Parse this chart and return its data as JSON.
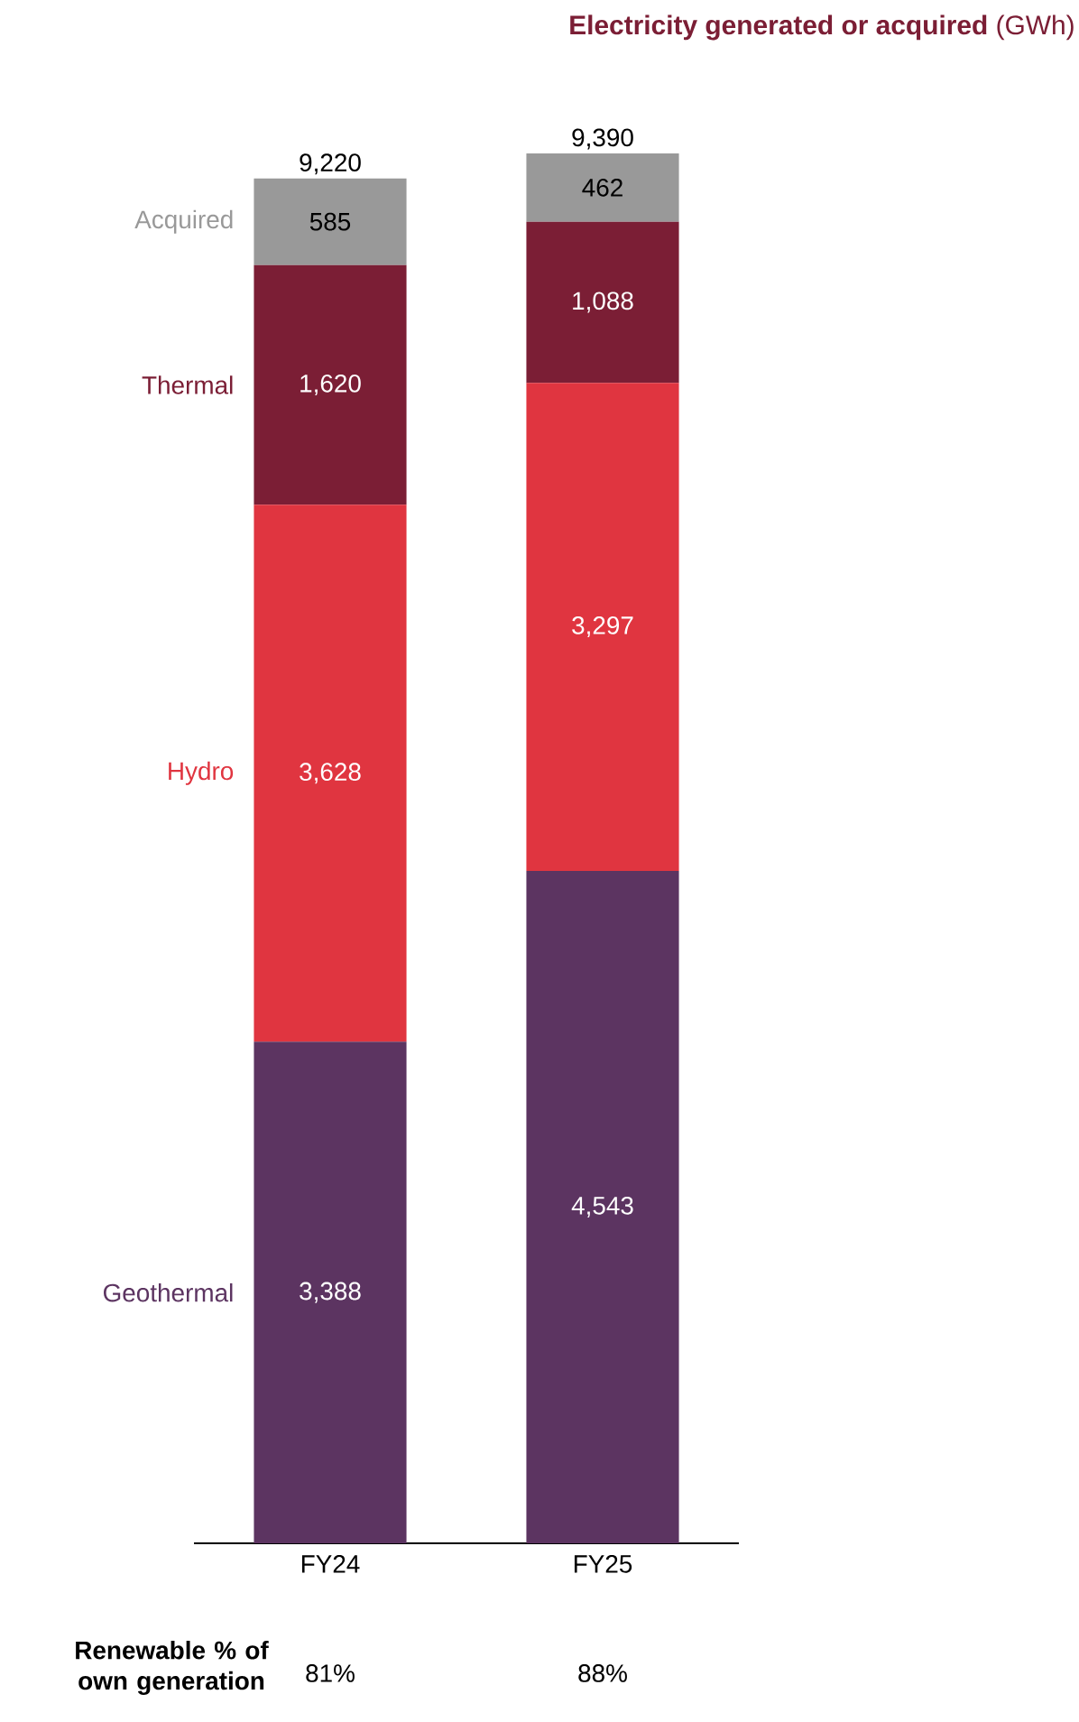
{
  "chart_data": {
    "type": "bar",
    "title": "**Electricity generated or acquired** (GWh)",
    "stacked": true,
    "categories": [
      "FY24",
      "FY25"
    ],
    "series": [
      {
        "name": "Geothermal",
        "color": "#5c3461",
        "values": [
          3388,
          4543
        ],
        "value_labels": [
          "3,388",
          "4,543"
        ]
      },
      {
        "name": "Hydro",
        "color": "#e03540",
        "values": [
          3628,
          3297
        ],
        "value_labels": [
          "3,628",
          "3,297"
        ]
      },
      {
        "name": "Thermal",
        "color": "#7b1e35",
        "values": [
          1620,
          1088
        ],
        "value_labels": [
          "1,620",
          "1,088"
        ]
      },
      {
        "name": "Acquired",
        "color": "#999999",
        "values": [
          585,
          462
        ],
        "value_labels": [
          "585",
          "462"
        ]
      }
    ],
    "totals": [
      "9,220",
      "9,390"
    ],
    "annotations": [
      "Renewable % of own generation",
      "81%",
      "88%"
    ]
  }
}
